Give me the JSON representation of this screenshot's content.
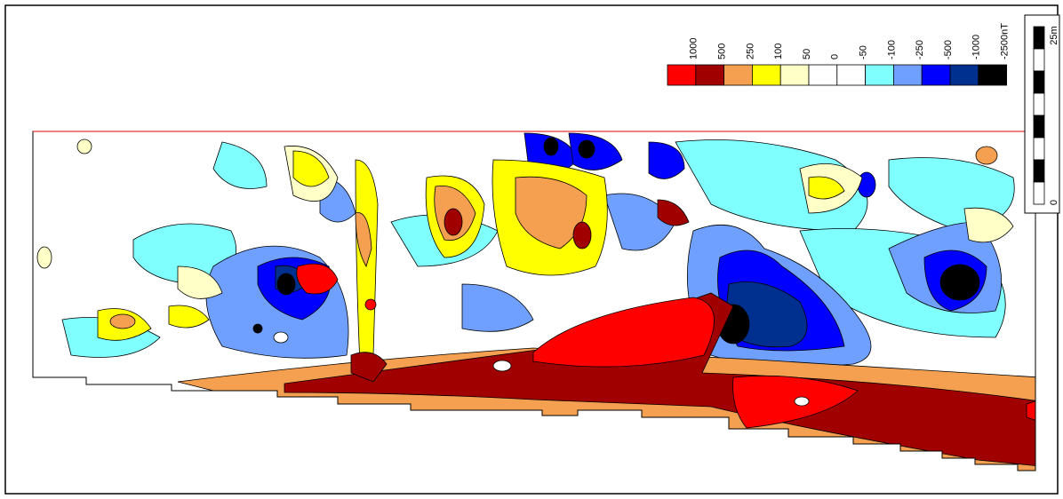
{
  "legend": {
    "items": [
      {
        "label": "1000",
        "color": "#ff0000"
      },
      {
        "label": "500",
        "color": "#a00000"
      },
      {
        "label": "250",
        "color": "#f5a050"
      },
      {
        "label": "100",
        "color": "#ffff00"
      },
      {
        "label": "50",
        "color": "#ffffc8"
      },
      {
        "label": "0",
        "color": "#ffffff"
      },
      {
        "label": "-50",
        "color": "#ffffff"
      },
      {
        "label": "-100",
        "color": "#80ffff"
      },
      {
        "label": "-250",
        "color": "#70a0ff"
      },
      {
        "label": "-500",
        "color": "#0000ff"
      },
      {
        "label": "-1000",
        "color": "#00308f"
      },
      {
        "label": "-2500nT",
        "color": "#000000"
      }
    ]
  },
  "scale_bar": {
    "top_label": "25m",
    "bottom_label": "0"
  }
}
